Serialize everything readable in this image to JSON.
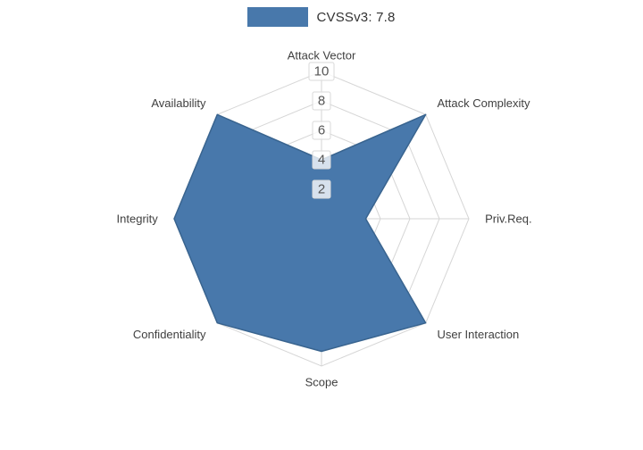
{
  "legend": {
    "label": "CVSSv3: 7.8",
    "swatch_color": "#4878ab"
  },
  "chart_data": {
    "type": "radar",
    "categories": [
      "Attack Vector",
      "Attack Complexity",
      "Priv.Req.",
      "User Interaction",
      "Scope",
      "Confidentiality",
      "Integrity",
      "Availability"
    ],
    "series": [
      {
        "name": "CVSSv3: 7.8",
        "values": [
          4,
          10,
          3,
          10,
          9,
          10,
          10,
          10
        ]
      }
    ],
    "range": [
      0,
      10
    ],
    "radial_ticks": [
      2,
      4,
      6,
      8,
      10
    ],
    "grid": true,
    "legend_position": "top-center",
    "fill_color": "#4878ab",
    "line_color": "#39648f",
    "grid_color": "#d6d6d6",
    "tick_label_color": "#555555",
    "tick_box_color": "#ffffff",
    "tick_box_border": "#d9d9d9",
    "axis_label_color": "#3f3f3f"
  }
}
